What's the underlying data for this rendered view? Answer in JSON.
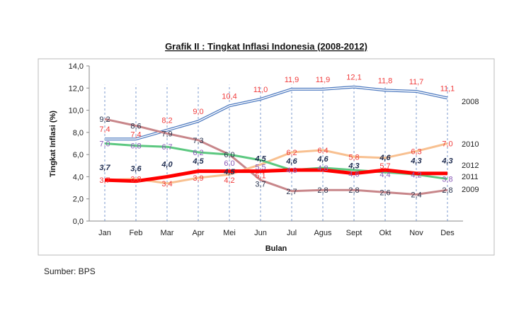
{
  "chart_data": {
    "type": "line",
    "title": "Grafik II : Tingkat Inflasi Indonesia (2008-2012)",
    "xlabel": "Bulan",
    "ylabel": "Tingkat Inflasi (%)",
    "ylim": [
      0,
      14
    ],
    "yticks": [
      "0,0",
      "2,0",
      "4,0",
      "6,0",
      "8,0",
      "10,0",
      "12,0",
      "14,0"
    ],
    "categories": [
      "Jan",
      "Feb",
      "Mar",
      "Apr",
      "Mei",
      "Jun",
      "Jul",
      "Agus",
      "Sept",
      "Okt",
      "Nov",
      "Des"
    ],
    "grid": "vertical dashed lines",
    "legend": "right, labels at line ends",
    "series": [
      {
        "name": "2008",
        "color": "#4f7bc0",
        "label_color": "#f03c3c",
        "values": [
          7.4,
          7.4,
          8.2,
          9.0,
          10.4,
          11.0,
          11.9,
          11.9,
          12.1,
          11.8,
          11.7,
          11.1
        ]
      },
      {
        "name": "2009",
        "color": "#c8868a",
        "label_color": "#2a3550",
        "values": [
          9.2,
          8.6,
          7.9,
          7.3,
          6.0,
          3.7,
          2.7,
          2.8,
          2.8,
          2.6,
          2.4,
          2.8
        ]
      },
      {
        "name": "2010",
        "color": "#f8c090",
        "label_color": "#f03c3c",
        "values": [
          3.7,
          3.8,
          3.4,
          3.9,
          4.2,
          5.1,
          6.2,
          6.4,
          5.8,
          5.7,
          6.3,
          7.0
        ]
      },
      {
        "name": "2011",
        "color": "#5cc880",
        "label_color": "#8a5cb8",
        "values": [
          7.0,
          6.8,
          6.7,
          6.2,
          6.0,
          5.5,
          4.6,
          4.8,
          4.6,
          4.4,
          4.2,
          3.8
        ]
      },
      {
        "name": "2012",
        "color": "#ff0000",
        "label_color": "#1e2c50",
        "values": [
          3.7,
          3.6,
          4.0,
          4.5,
          4.5,
          4.5,
          4.6,
          4.6,
          4.3,
          4.6,
          4.3,
          4.3
        ]
      }
    ]
  },
  "source": "Sumber: BPS"
}
